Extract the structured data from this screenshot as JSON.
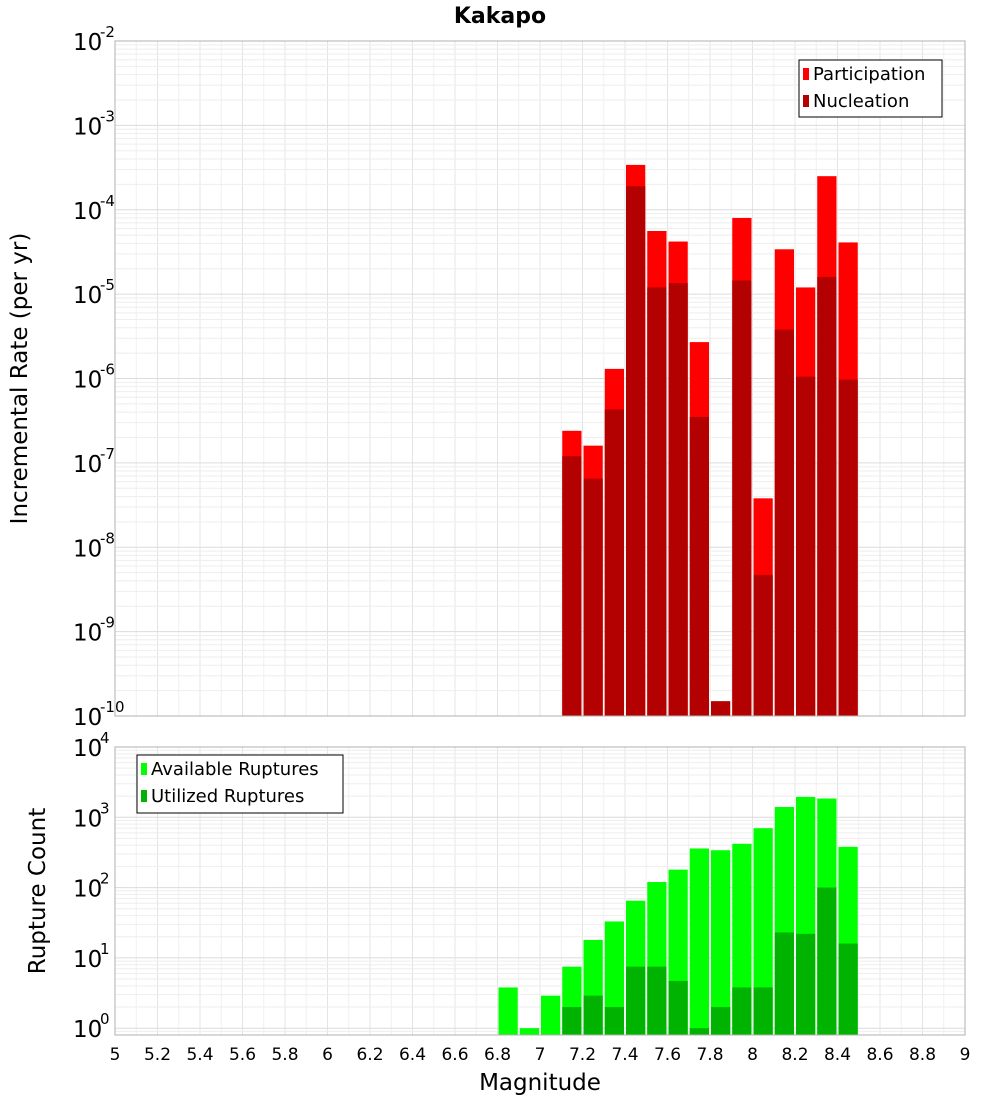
{
  "chart_data": [
    {
      "type": "bar",
      "title": "Kakapo",
      "xlabel": "",
      "ylabel": "Incremental Rate (per yr)",
      "y_scale": "log",
      "ylim": [
        1e-10,
        0.01
      ],
      "xlim": [
        5,
        9
      ],
      "grid": true,
      "legend_position": "top-right",
      "bin_width": 0.1,
      "x": [
        7.15,
        7.25,
        7.35,
        7.45,
        7.55,
        7.65,
        7.75,
        7.85,
        7.95,
        8.05,
        8.15,
        8.25,
        8.35,
        8.45
      ],
      "series": [
        {
          "name": "Participation",
          "color": "#ff0000",
          "values": [
            2.4e-07,
            1.6e-07,
            1.3e-06,
            0.00034,
            5.6e-05,
            4.2e-05,
            2.7e-06,
            null,
            8e-05,
            3.8e-08,
            3.4e-05,
            1.2e-05,
            0.00025,
            4.1e-05
          ]
        },
        {
          "name": "Nucleation",
          "color": "#b30000",
          "values": [
            1.2e-07,
            6.5e-08,
            4.3e-07,
            0.00019,
            1.2e-05,
            1.35e-05,
            3.5e-07,
            1.5e-10,
            1.45e-05,
            4.7e-09,
            3.8e-06,
            1.05e-06,
            1.6e-05,
            9.7e-07
          ]
        }
      ],
      "y_ticks": [
        {
          "base": "10",
          "exp": "-2",
          "value": 0.01
        },
        {
          "base": "10",
          "exp": "-3",
          "value": 0.001
        },
        {
          "base": "10",
          "exp": "-4",
          "value": 0.0001
        },
        {
          "base": "10",
          "exp": "-5",
          "value": 1e-05
        },
        {
          "base": "10",
          "exp": "-6",
          "value": 1e-06
        },
        {
          "base": "10",
          "exp": "-7",
          "value": 1e-07
        },
        {
          "base": "10",
          "exp": "-8",
          "value": 1e-08
        },
        {
          "base": "10",
          "exp": "-9",
          "value": 1e-09
        },
        {
          "base": "10",
          "exp": "-10",
          "value": 1e-10
        }
      ]
    },
    {
      "type": "bar",
      "title": "",
      "xlabel": "Magnitude",
      "ylabel": "Rupture Count",
      "y_scale": "log",
      "ylim": [
        0.8,
        10000
      ],
      "xlim": [
        5,
        9
      ],
      "grid": true,
      "legend_position": "top-left",
      "bin_width": 0.1,
      "x": [
        6.85,
        6.95,
        7.05,
        7.15,
        7.25,
        7.35,
        7.45,
        7.55,
        7.65,
        7.75,
        7.85,
        7.95,
        8.05,
        8.15,
        8.25,
        8.35,
        8.45
      ],
      "series": [
        {
          "name": "Available Ruptures",
          "color": "#00ff00",
          "values": [
            3.8,
            1,
            2.9,
            7.5,
            18,
            33,
            65,
            120,
            180,
            360,
            340,
            420,
            700,
            1400,
            1950,
            1850,
            380
          ]
        },
        {
          "name": "Utilized Ruptures",
          "color": "#00b300",
          "values": [
            null,
            null,
            null,
            2,
            2.9,
            2,
            7.5,
            7.5,
            4.7,
            1,
            2,
            3.8,
            3.8,
            23,
            22,
            100,
            16
          ]
        }
      ],
      "y_ticks": [
        {
          "base": "10",
          "exp": "4",
          "value": 10000
        },
        {
          "base": "10",
          "exp": "3",
          "value": 1000
        },
        {
          "base": "10",
          "exp": "2",
          "value": 100
        },
        {
          "base": "10",
          "exp": "1",
          "value": 10
        },
        {
          "base": "10",
          "exp": "0",
          "value": 1
        }
      ],
      "x_ticks": [
        "5",
        "5.2",
        "5.4",
        "5.6",
        "5.8",
        "6",
        "6.2",
        "6.4",
        "6.6",
        "6.8",
        "7",
        "7.2",
        "7.4",
        "7.6",
        "7.8",
        "8",
        "8.2",
        "8.4",
        "8.6",
        "8.8",
        "9"
      ]
    }
  ]
}
